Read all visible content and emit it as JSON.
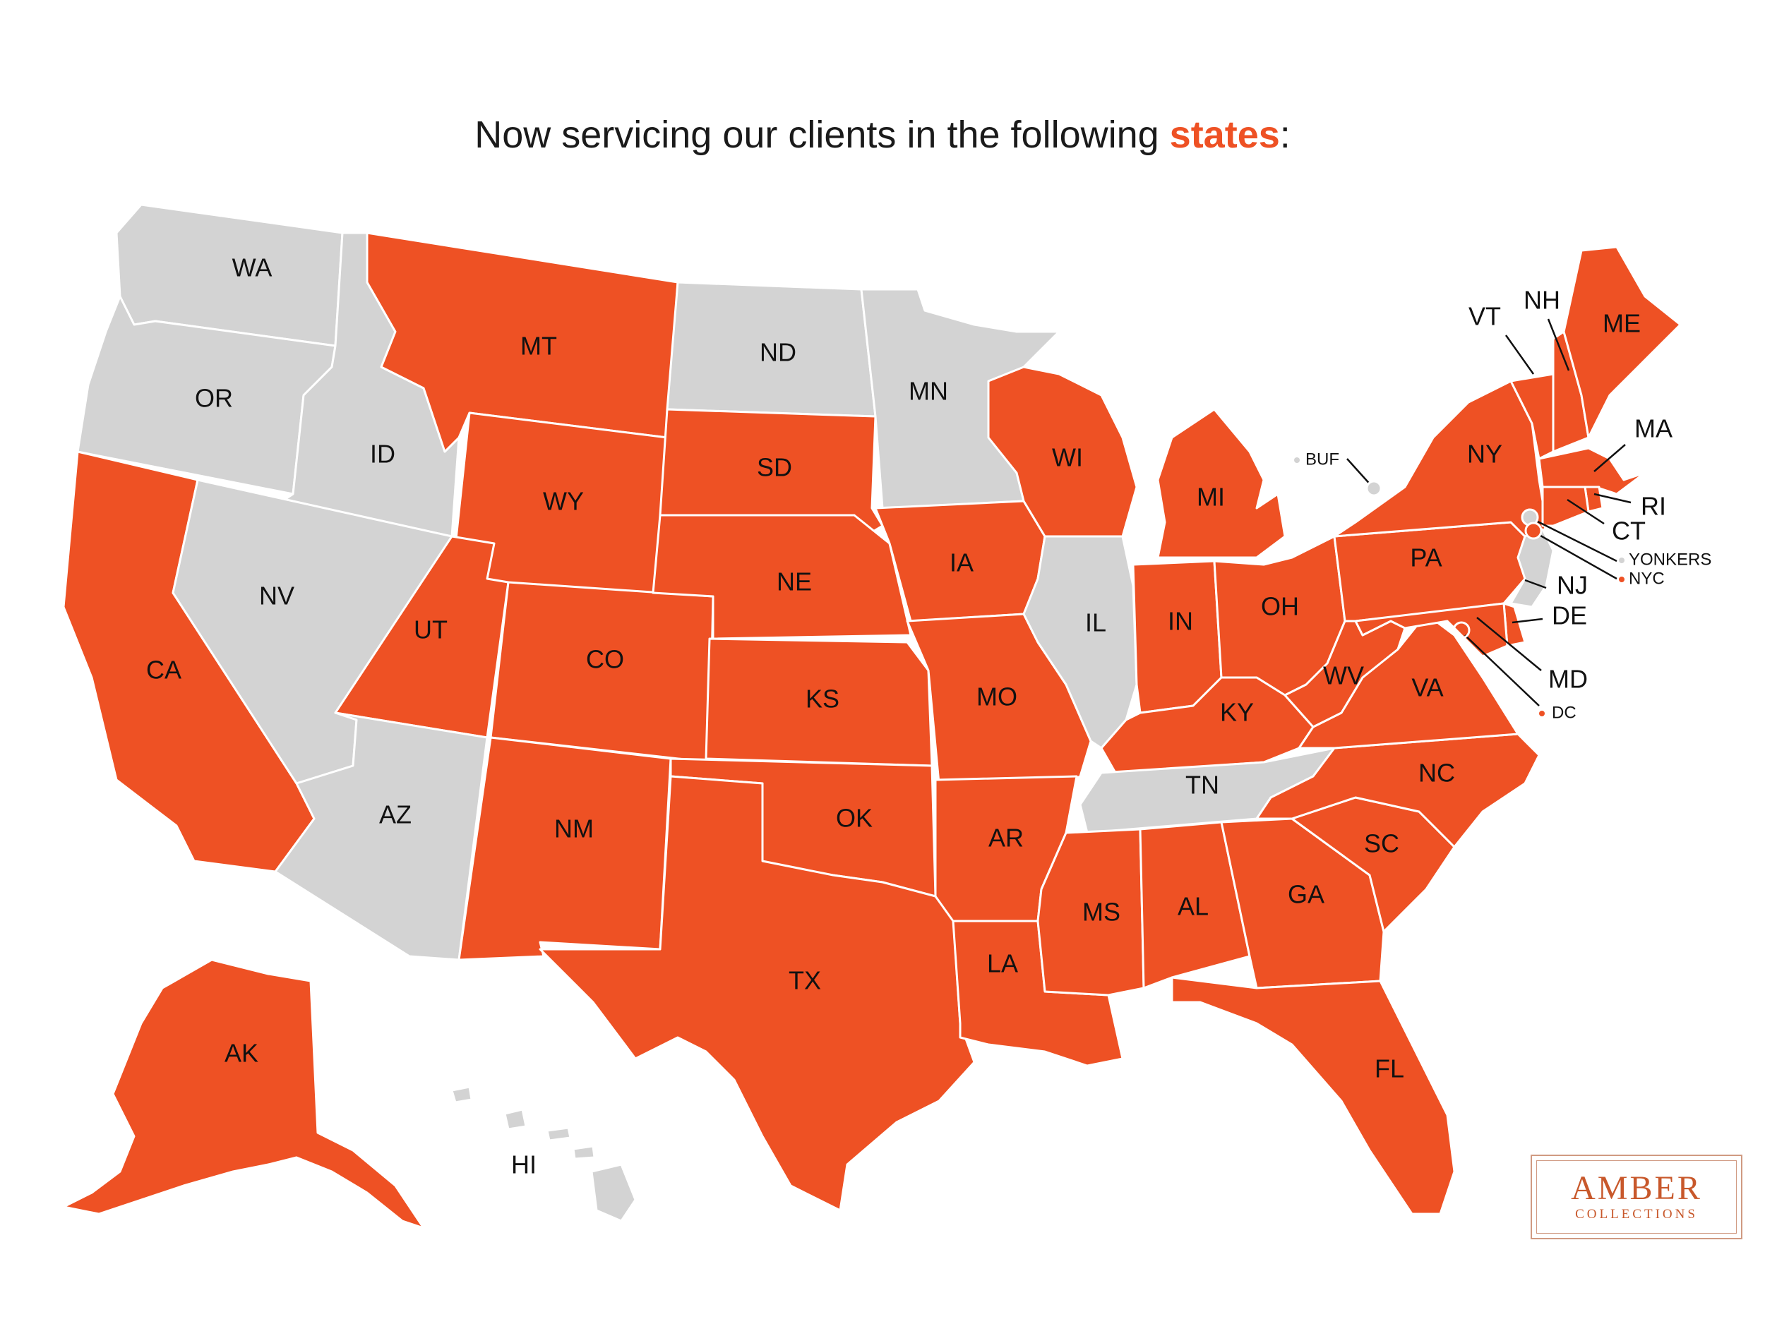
{
  "title": {
    "prefix": "Now servicing our clients in the following ",
    "highlight": "states",
    "suffix": ":"
  },
  "colors": {
    "serviced": "#ee5124",
    "not_serviced": "#d3d3d3",
    "highlight_text": "#ee5124"
  },
  "states": {
    "WA": {
      "label": "WA",
      "serviced": false
    },
    "OR": {
      "label": "OR",
      "serviced": false
    },
    "CA": {
      "label": "CA",
      "serviced": true
    },
    "ID": {
      "label": "ID",
      "serviced": false
    },
    "NV": {
      "label": "NV",
      "serviced": false
    },
    "MT": {
      "label": "MT",
      "serviced": true
    },
    "WY": {
      "label": "WY",
      "serviced": true
    },
    "UT": {
      "label": "UT",
      "serviced": true
    },
    "AZ": {
      "label": "AZ",
      "serviced": false
    },
    "CO": {
      "label": "CO",
      "serviced": true
    },
    "NM": {
      "label": "NM",
      "serviced": true
    },
    "ND": {
      "label": "ND",
      "serviced": false
    },
    "SD": {
      "label": "SD",
      "serviced": true
    },
    "NE": {
      "label": "NE",
      "serviced": true
    },
    "KS": {
      "label": "KS",
      "serviced": true
    },
    "OK": {
      "label": "OK",
      "serviced": true
    },
    "TX": {
      "label": "TX",
      "serviced": true
    },
    "MN": {
      "label": "MN",
      "serviced": false
    },
    "IA": {
      "label": "IA",
      "serviced": true
    },
    "MO": {
      "label": "MO",
      "serviced": true
    },
    "AR": {
      "label": "AR",
      "serviced": true
    },
    "LA": {
      "label": "LA",
      "serviced": true
    },
    "WI": {
      "label": "WI",
      "serviced": true
    },
    "IL": {
      "label": "IL",
      "serviced": false
    },
    "MI": {
      "label": "MI",
      "serviced": true
    },
    "IN": {
      "label": "IN",
      "serviced": true
    },
    "OH": {
      "label": "OH",
      "serviced": true
    },
    "KY": {
      "label": "KY",
      "serviced": true
    },
    "TN": {
      "label": "TN",
      "serviced": false
    },
    "MS": {
      "label": "MS",
      "serviced": true
    },
    "AL": {
      "label": "AL",
      "serviced": true
    },
    "GA": {
      "label": "GA",
      "serviced": true
    },
    "FL": {
      "label": "FL",
      "serviced": true
    },
    "SC": {
      "label": "SC",
      "serviced": true
    },
    "NC": {
      "label": "NC",
      "serviced": true
    },
    "VA": {
      "label": "VA",
      "serviced": true
    },
    "WV": {
      "label": "WV",
      "serviced": true
    },
    "PA": {
      "label": "PA",
      "serviced": true
    },
    "NY": {
      "label": "NY",
      "serviced": true
    },
    "VT": {
      "label": "VT",
      "serviced": true
    },
    "NH": {
      "label": "NH",
      "serviced": true
    },
    "ME": {
      "label": "ME",
      "serviced": true
    },
    "MA": {
      "label": "MA",
      "serviced": true
    },
    "RI": {
      "label": "RI",
      "serviced": true
    },
    "CT": {
      "label": "CT",
      "serviced": true
    },
    "NJ": {
      "label": "NJ",
      "serviced": false
    },
    "DE": {
      "label": "DE",
      "serviced": true
    },
    "MD": {
      "label": "MD",
      "serviced": true
    },
    "AK": {
      "label": "AK",
      "serviced": true
    },
    "HI": {
      "label": "HI",
      "serviced": false
    },
    "DC": {
      "label": "DC",
      "serviced": true
    }
  },
  "cities": {
    "BUF": {
      "label": "BUF",
      "serviced": false
    },
    "YONKERS": {
      "label": "YONKERS",
      "serviced": false
    },
    "NYC": {
      "label": "NYC",
      "serviced": true
    }
  },
  "logo": {
    "name": "AMBER",
    "subtitle": "COLLECTIONS"
  }
}
